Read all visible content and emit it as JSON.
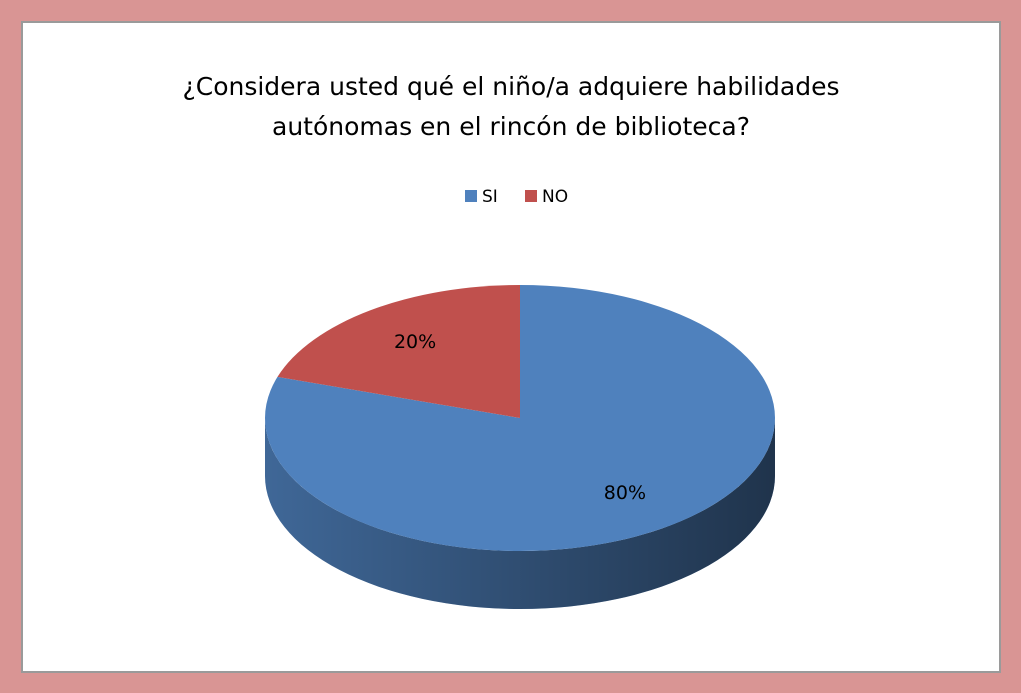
{
  "chart_data": {
    "type": "pie",
    "title": [
      "¿Considera usted qué  el niño/a adquiere habilidades",
      "autónomas en el rincón de biblioteca?"
    ],
    "categories": [
      "SI",
      "NO"
    ],
    "values": [
      80,
      20
    ],
    "value_labels": [
      "80%",
      "20%"
    ],
    "colors": [
      "#4f81bd",
      "#c0504d"
    ],
    "legend": "top"
  }
}
